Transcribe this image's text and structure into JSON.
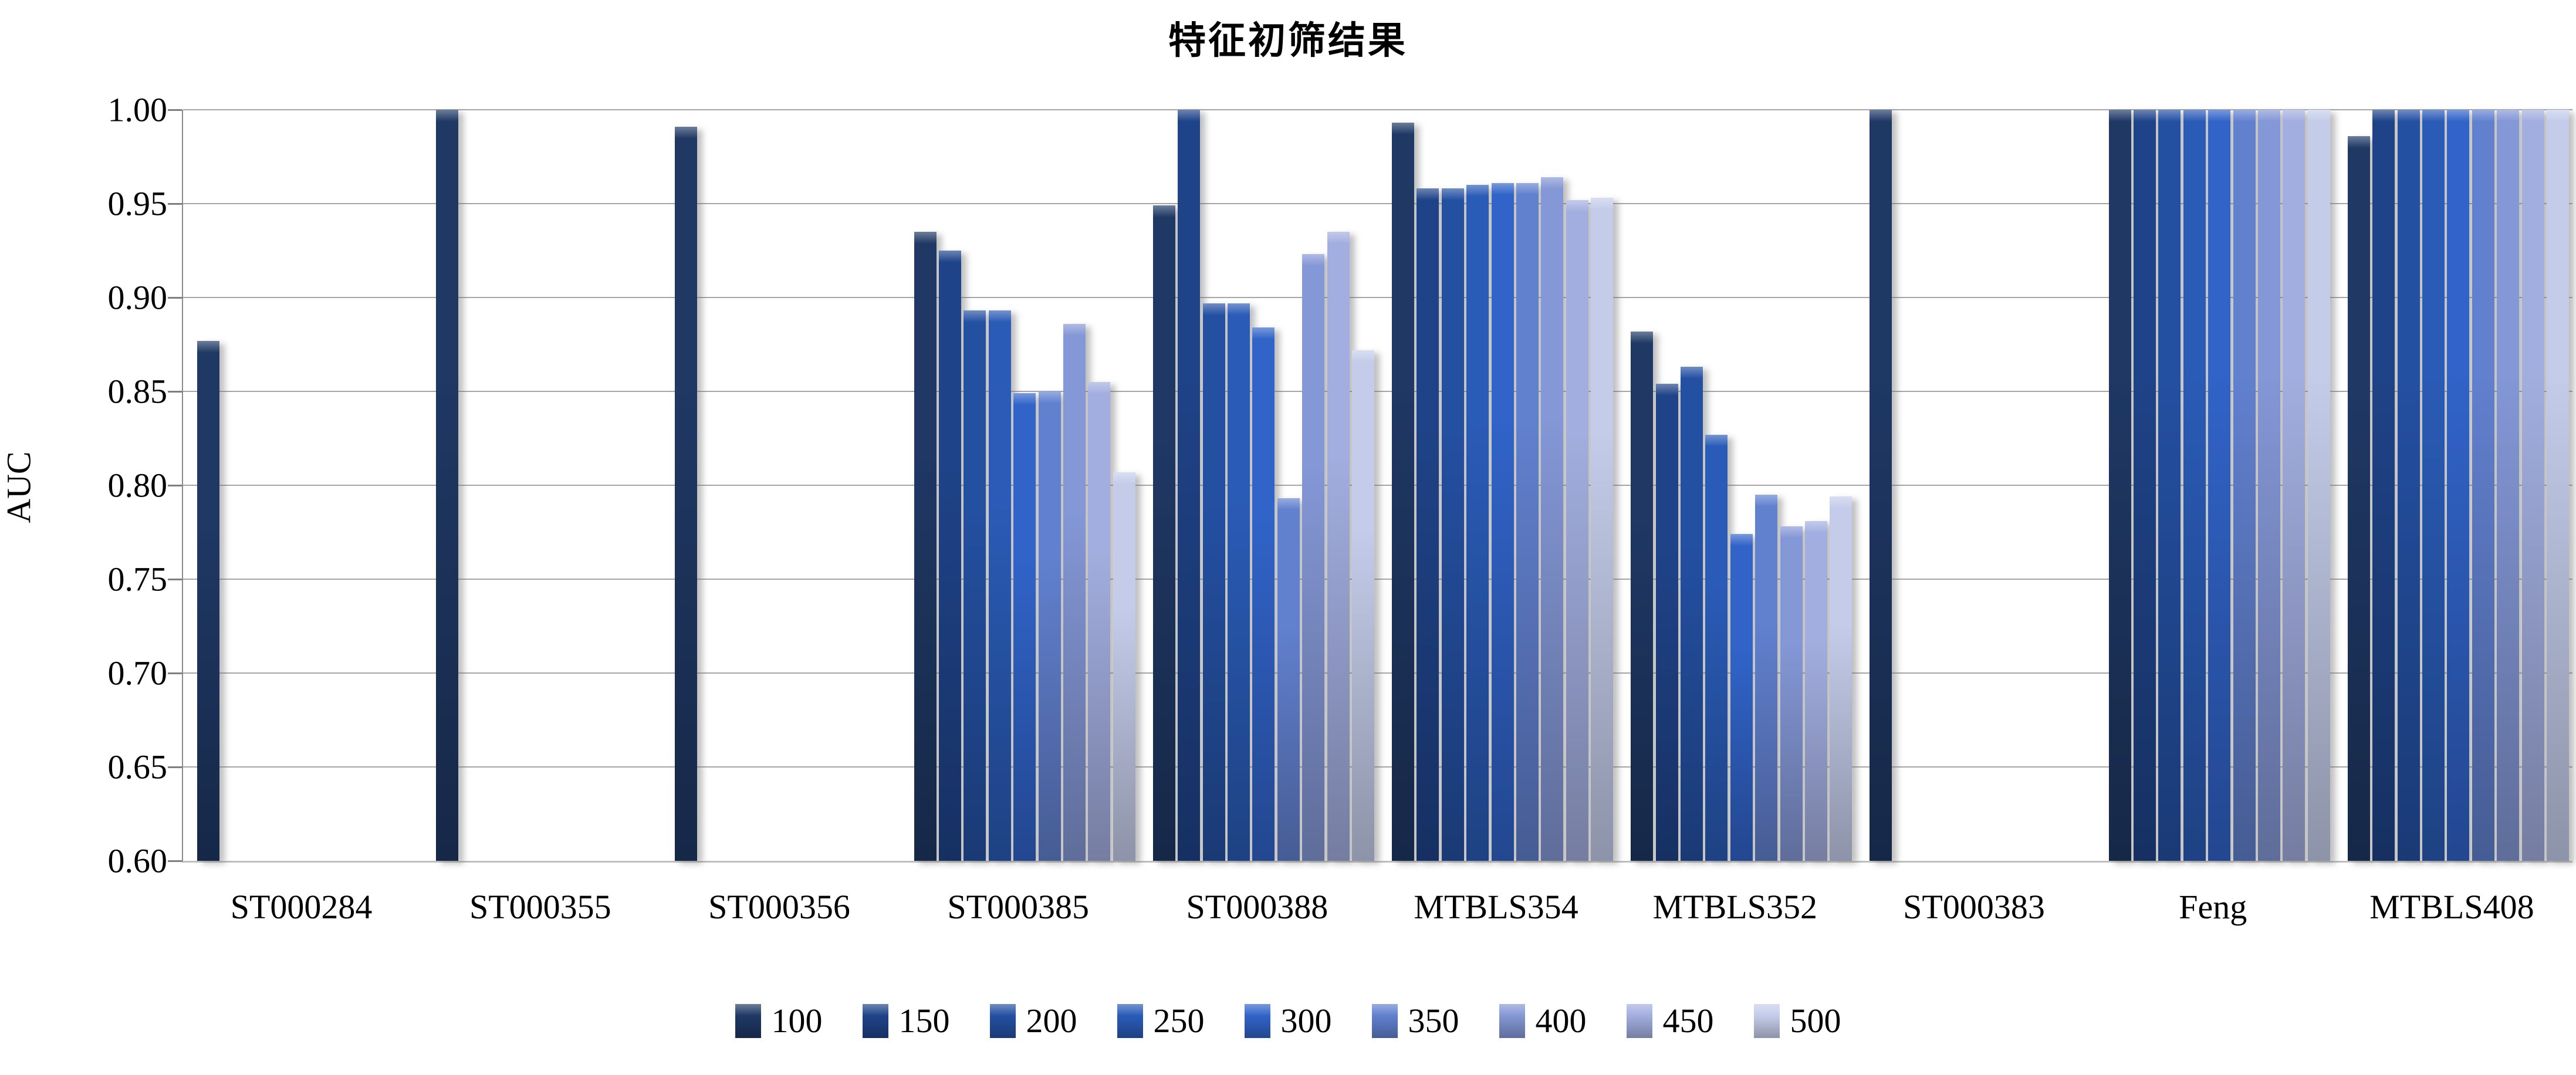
{
  "title": "特征初筛结果",
  "chart_data": {
    "type": "bar",
    "title": "特征初筛结果",
    "xlabel": "",
    "ylabel": "AUC",
    "ylim": [
      0.6,
      1.0
    ],
    "ytick_step": 0.05,
    "grid": true,
    "legend_position": "bottom",
    "categories": [
      "ST000284",
      "ST000355",
      "ST000356",
      "ST000385",
      "ST000388",
      "MTBLS354",
      "MTBLS352",
      "ST000383",
      "Feng",
      "MTBLS408"
    ],
    "series": [
      {
        "name": "100",
        "color": "#1F3864",
        "values": [
          0.877,
          1.0,
          0.991,
          0.935,
          0.949,
          0.993,
          0.882,
          1.0,
          1.0,
          0.986
        ]
      },
      {
        "name": "150",
        "color": "#1F4388",
        "values": [
          null,
          null,
          null,
          0.925,
          1.0,
          0.958,
          0.854,
          null,
          1.0,
          1.0
        ]
      },
      {
        "name": "200",
        "color": "#2450A2",
        "values": [
          null,
          null,
          null,
          0.893,
          0.897,
          0.958,
          0.863,
          null,
          1.0,
          1.0
        ]
      },
      {
        "name": "250",
        "color": "#2A5BB6",
        "values": [
          null,
          null,
          null,
          0.893,
          0.897,
          0.96,
          0.827,
          null,
          1.0,
          1.0
        ]
      },
      {
        "name": "300",
        "color": "#3163C8",
        "values": [
          null,
          null,
          null,
          0.849,
          0.884,
          0.961,
          0.774,
          null,
          1.0,
          1.0
        ]
      },
      {
        "name": "350",
        "color": "#6180CE",
        "values": [
          null,
          null,
          null,
          0.85,
          0.793,
          0.961,
          0.795,
          null,
          1.0,
          1.0
        ]
      },
      {
        "name": "400",
        "color": "#8497D6",
        "values": [
          null,
          null,
          null,
          0.886,
          0.923,
          0.964,
          0.778,
          null,
          1.0,
          1.0
        ]
      },
      {
        "name": "450",
        "color": "#A2AEDF",
        "values": [
          null,
          null,
          null,
          0.855,
          0.935,
          0.952,
          0.781,
          null,
          1.0,
          1.0
        ]
      },
      {
        "name": "500",
        "color": "#C4CCEA",
        "values": [
          null,
          null,
          null,
          0.807,
          0.872,
          0.953,
          0.794,
          null,
          1.0,
          1.0
        ]
      }
    ]
  }
}
